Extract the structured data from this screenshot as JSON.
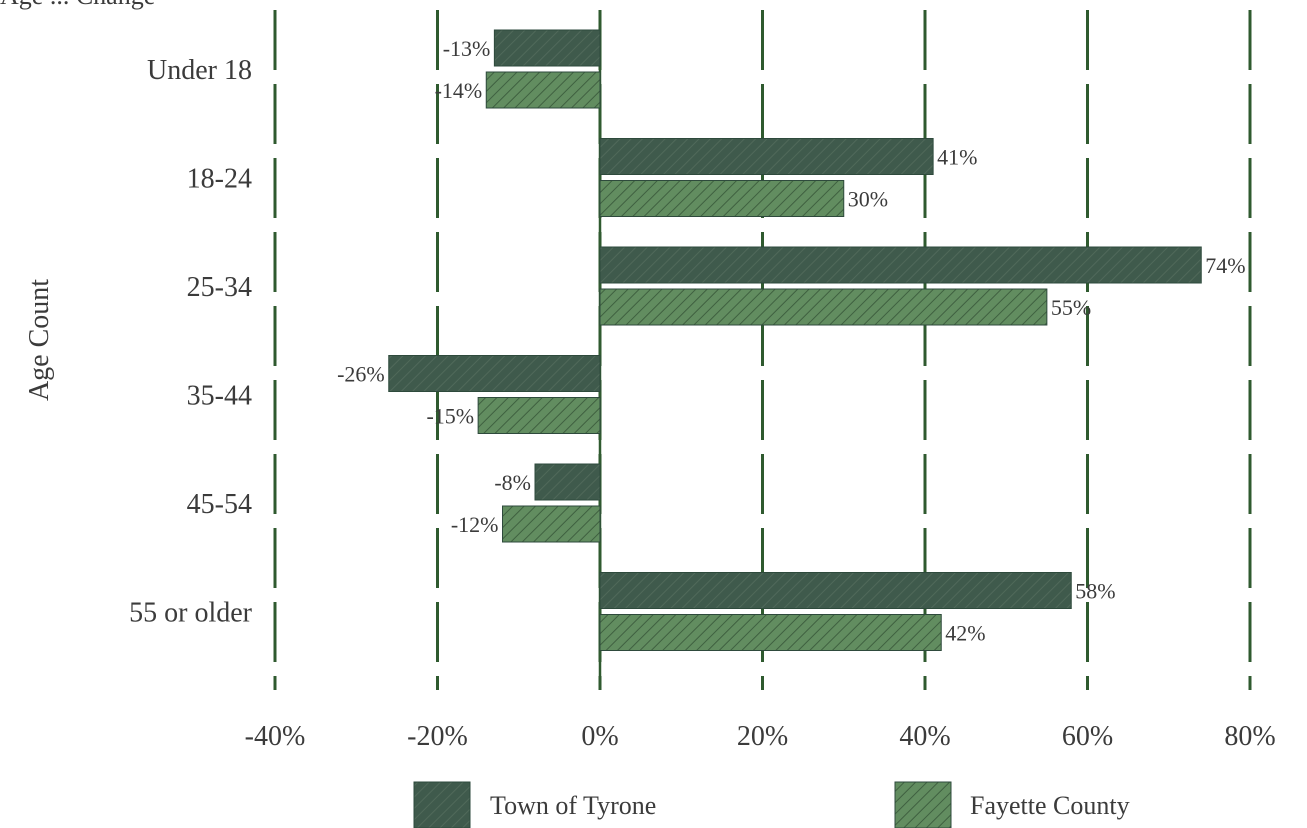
{
  "header": {
    "partial_title": "Age ... Change"
  },
  "chart_data": {
    "type": "bar",
    "orientation": "horizontal",
    "categories": [
      "Under 18",
      "18-24",
      "25-34",
      "35-44",
      "45-54",
      "55 or older"
    ],
    "series": [
      {
        "name": "Town of Tyrone",
        "values": [
          -13,
          41,
          74,
          -26,
          -8,
          58
        ],
        "labels": [
          "-13%",
          "41%",
          "74%",
          "-26%",
          "-8%",
          "58%"
        ],
        "color": "#3f5a4c"
      },
      {
        "name": "Fayette County",
        "values": [
          -14,
          30,
          55,
          -15,
          -12,
          42
        ],
        "labels": [
          "-14%",
          "30%",
          "55%",
          "-15%",
          "-12%",
          "42%"
        ],
        "color": "#5e8a5c"
      }
    ],
    "xlim": [
      -40,
      80
    ],
    "xticks": [
      -40,
      -20,
      0,
      20,
      40,
      60,
      80
    ],
    "xtick_labels": [
      "-40%",
      "-20%",
      "0%",
      "20%",
      "40%",
      "60%",
      "80%"
    ],
    "ylabel": "Age Count",
    "grid": "vertical dashed",
    "legend": "bottom"
  }
}
